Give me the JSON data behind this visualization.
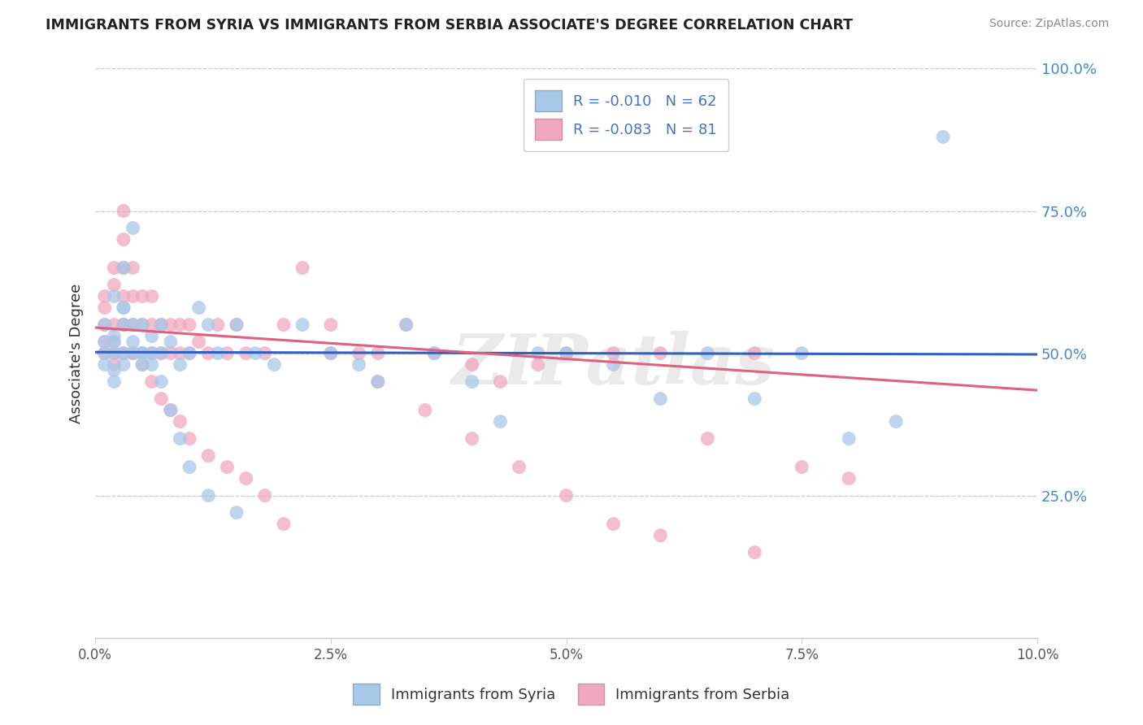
{
  "title": "IMMIGRANTS FROM SYRIA VS IMMIGRANTS FROM SERBIA ASSOCIATE'S DEGREE CORRELATION CHART",
  "source": "Source: ZipAtlas.com",
  "ylabel": "Associate's Degree",
  "y_ticks": [
    0.0,
    0.25,
    0.5,
    0.75,
    1.0
  ],
  "y_tick_labels": [
    "",
    "25.0%",
    "50.0%",
    "75.0%",
    "100.0%"
  ],
  "x_min": 0.0,
  "x_max": 0.1,
  "y_min": 0.0,
  "y_max": 1.0,
  "color_syria": "#a8c8e8",
  "color_serbia": "#f0a8c0",
  "line_color_syria": "#3060c0",
  "line_color_serbia": "#e06080",
  "syria_R": -0.01,
  "syria_N": 62,
  "serbia_R": -0.083,
  "serbia_N": 81,
  "syria_line_y0": 0.502,
  "syria_line_y1": 0.498,
  "serbia_line_y0": 0.545,
  "serbia_line_y1": 0.435,
  "scatter_syria_x": [
    0.001,
    0.001,
    0.001,
    0.001,
    0.002,
    0.002,
    0.002,
    0.002,
    0.002,
    0.003,
    0.003,
    0.003,
    0.003,
    0.003,
    0.004,
    0.004,
    0.004,
    0.005,
    0.005,
    0.005,
    0.006,
    0.006,
    0.007,
    0.007,
    0.008,
    0.009,
    0.01,
    0.011,
    0.012,
    0.013,
    0.015,
    0.017,
    0.019,
    0.022,
    0.025,
    0.028,
    0.03,
    0.033,
    0.036,
    0.04,
    0.043,
    0.047,
    0.05,
    0.055,
    0.06,
    0.065,
    0.07,
    0.075,
    0.08,
    0.085,
    0.002,
    0.003,
    0.004,
    0.005,
    0.006,
    0.007,
    0.008,
    0.009,
    0.01,
    0.012,
    0.015,
    0.09
  ],
  "scatter_syria_y": [
    0.5,
    0.48,
    0.52,
    0.55,
    0.5,
    0.53,
    0.47,
    0.6,
    0.45,
    0.5,
    0.55,
    0.48,
    0.58,
    0.65,
    0.5,
    0.52,
    0.72,
    0.5,
    0.48,
    0.55,
    0.5,
    0.53,
    0.5,
    0.55,
    0.52,
    0.48,
    0.5,
    0.58,
    0.55,
    0.5,
    0.55,
    0.5,
    0.48,
    0.55,
    0.5,
    0.48,
    0.45,
    0.55,
    0.5,
    0.45,
    0.38,
    0.5,
    0.5,
    0.48,
    0.42,
    0.5,
    0.42,
    0.5,
    0.35,
    0.38,
    0.52,
    0.58,
    0.55,
    0.5,
    0.48,
    0.45,
    0.4,
    0.35,
    0.3,
    0.25,
    0.22,
    0.88
  ],
  "scatter_serbia_x": [
    0.001,
    0.001,
    0.001,
    0.001,
    0.001,
    0.002,
    0.002,
    0.002,
    0.002,
    0.002,
    0.002,
    0.003,
    0.003,
    0.003,
    0.003,
    0.003,
    0.003,
    0.004,
    0.004,
    0.004,
    0.004,
    0.005,
    0.005,
    0.005,
    0.006,
    0.006,
    0.006,
    0.007,
    0.007,
    0.008,
    0.008,
    0.009,
    0.009,
    0.01,
    0.01,
    0.011,
    0.012,
    0.013,
    0.014,
    0.015,
    0.016,
    0.018,
    0.02,
    0.022,
    0.025,
    0.028,
    0.03,
    0.033,
    0.036,
    0.04,
    0.043,
    0.047,
    0.05,
    0.055,
    0.06,
    0.065,
    0.07,
    0.075,
    0.08,
    0.003,
    0.004,
    0.005,
    0.006,
    0.007,
    0.008,
    0.009,
    0.01,
    0.012,
    0.014,
    0.016,
    0.018,
    0.02,
    0.025,
    0.03,
    0.035,
    0.04,
    0.045,
    0.05,
    0.055,
    0.06,
    0.07
  ],
  "scatter_serbia_y": [
    0.5,
    0.52,
    0.55,
    0.58,
    0.6,
    0.5,
    0.52,
    0.48,
    0.55,
    0.62,
    0.65,
    0.5,
    0.55,
    0.6,
    0.65,
    0.7,
    0.75,
    0.5,
    0.55,
    0.6,
    0.65,
    0.5,
    0.55,
    0.6,
    0.5,
    0.55,
    0.6,
    0.5,
    0.55,
    0.5,
    0.55,
    0.5,
    0.55,
    0.5,
    0.55,
    0.52,
    0.5,
    0.55,
    0.5,
    0.55,
    0.5,
    0.5,
    0.55,
    0.65,
    0.55,
    0.5,
    0.5,
    0.55,
    0.5,
    0.48,
    0.45,
    0.48,
    0.5,
    0.5,
    0.5,
    0.35,
    0.5,
    0.3,
    0.28,
    0.55,
    0.5,
    0.48,
    0.45,
    0.42,
    0.4,
    0.38,
    0.35,
    0.32,
    0.3,
    0.28,
    0.25,
    0.2,
    0.5,
    0.45,
    0.4,
    0.35,
    0.3,
    0.25,
    0.2,
    0.18,
    0.15
  ],
  "watermark": "ZIPatlas",
  "background_color": "#ffffff",
  "grid_color": "#c8c8d8"
}
